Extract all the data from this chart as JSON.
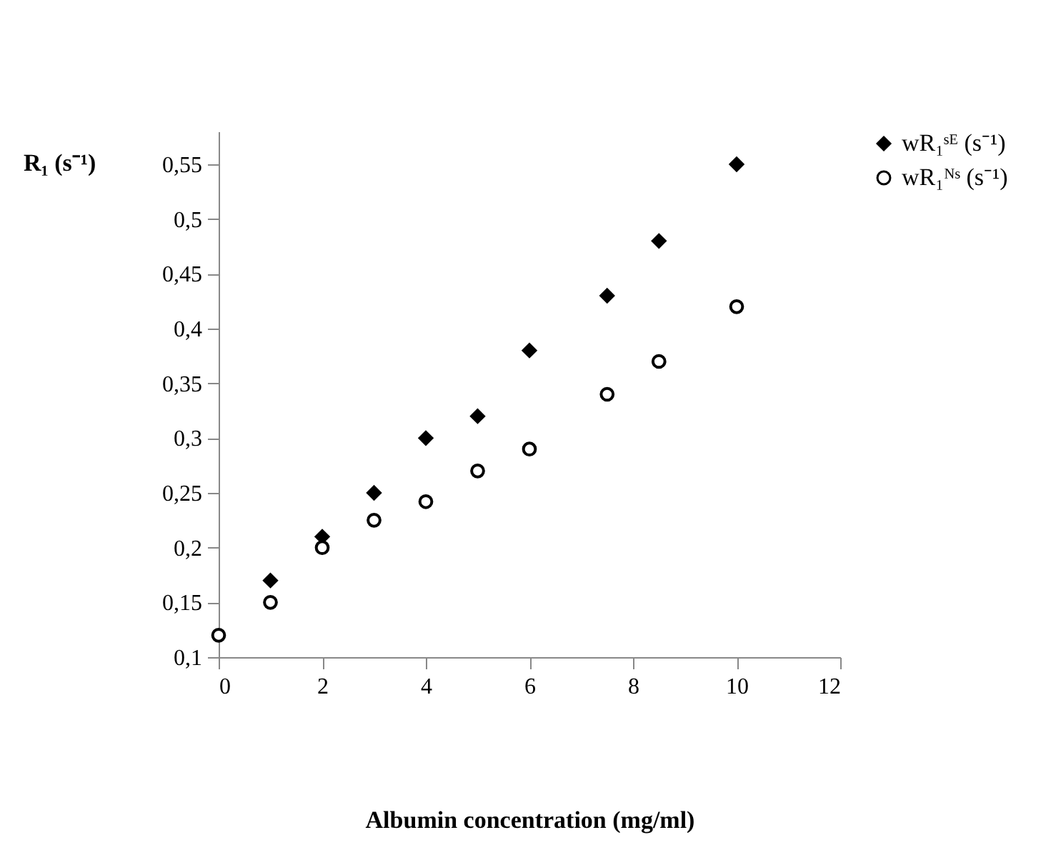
{
  "chart_data": {
    "type": "scatter",
    "xlabel": "Albumin concentration (mg/ml)",
    "ylabel": "R₁ (s⁻¹)",
    "xlim": [
      0,
      12
    ],
    "xticks": [
      0,
      2,
      4,
      6,
      8,
      10,
      12
    ],
    "ylim": [
      0.1,
      0.58
    ],
    "yticks": [
      {
        "value": 0.1,
        "label": "0,1"
      },
      {
        "value": 0.15,
        "label": "0,15"
      },
      {
        "value": 0.2,
        "label": "0,2"
      },
      {
        "value": 0.25,
        "label": "0,25"
      },
      {
        "value": 0.3,
        "label": "0,3"
      },
      {
        "value": 0.35,
        "label": "0,35"
      },
      {
        "value": 0.4,
        "label": "0,4"
      },
      {
        "value": 0.45,
        "label": "0,45"
      },
      {
        "value": 0.5,
        "label": "0,5"
      },
      {
        "value": 0.55,
        "label": "0,55"
      }
    ],
    "legend": "top right",
    "grid": false,
    "series": [
      {
        "name": "wR₁ˢᴱ (s⁻¹)",
        "color": "#000000",
        "marker": "diamond",
        "x": [
          1,
          2,
          3,
          4,
          5,
          6,
          7.5,
          8.5,
          10
        ],
        "values": [
          0.17,
          0.21,
          0.25,
          0.3,
          0.32,
          0.38,
          0.43,
          0.48,
          0.55
        ]
      },
      {
        "name": "wR₁ᴺˢ (s⁻¹)",
        "color": "#000000",
        "marker": "circle",
        "x": [
          0,
          1,
          2,
          3,
          4,
          5,
          6,
          7.5,
          8.5,
          10
        ],
        "values": [
          0.12,
          0.15,
          0.2,
          0.225,
          0.242,
          0.27,
          0.29,
          0.34,
          0.37,
          0.42
        ]
      }
    ]
  }
}
